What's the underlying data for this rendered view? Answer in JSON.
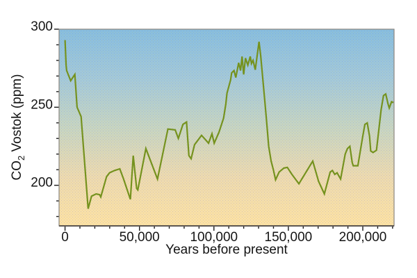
{
  "figure": {
    "background_color": "#ffffff"
  },
  "chart_data": {
    "type": "line",
    "title": "",
    "xlabel": "Years before present",
    "ylabel": "CO2 Vostok (ppm)",
    "ylabel_parts": {
      "prefix": "CO",
      "subscript": "2",
      "suffix": " Vostok (ppm)"
    },
    "x_range": [
      -4000,
      221000
    ],
    "y_range": [
      174,
      300
    ],
    "x_ticks": [
      {
        "value": 0,
        "label": "0"
      },
      {
        "value": 50000,
        "label": "50,000"
      },
      {
        "value": 100000,
        "label": "100,000"
      },
      {
        "value": 150000,
        "label": "150,000"
      },
      {
        "value": 200000,
        "label": "200,000"
      }
    ],
    "y_ticks": [
      {
        "value": 200,
        "label": "200"
      },
      {
        "value": 250,
        "label": "250"
      },
      {
        "value": 300,
        "label": "300"
      }
    ],
    "x_minor_step": 10000,
    "x_minor_max": 220000,
    "y_minor_step": 10,
    "grid": false,
    "legend": "none",
    "line_color": "#75921e",
    "tick_color": "#1c1c1c",
    "border_color": "#8a8580",
    "baseline_color": "#5d5651",
    "text_color": "#141414",
    "background_gradient": [
      "#87bedf",
      "#a3c9da",
      "#c6d5c3",
      "#ecdab1",
      "#fce2a5"
    ],
    "series": [
      {
        "name": "CO2 Vostok",
        "points": [
          [
            0,
            293
          ],
          [
            700,
            277
          ],
          [
            1100,
            273.5
          ],
          [
            3800,
            267
          ],
          [
            6600,
            271
          ],
          [
            8100,
            250
          ],
          [
            10800,
            244
          ],
          [
            15500,
            185
          ],
          [
            17800,
            193
          ],
          [
            20900,
            194.5
          ],
          [
            23200,
            194
          ],
          [
            24000,
            192.5
          ],
          [
            27900,
            205.5
          ],
          [
            29900,
            208
          ],
          [
            33300,
            209.5
          ],
          [
            36800,
            210.5
          ],
          [
            39300,
            204
          ],
          [
            43900,
            191
          ],
          [
            45800,
            219
          ],
          [
            48100,
            198
          ],
          [
            48900,
            197
          ],
          [
            54300,
            223.5
          ],
          [
            62100,
            204
          ],
          [
            69100,
            236
          ],
          [
            74000,
            235.5
          ],
          [
            76100,
            230
          ],
          [
            79200,
            239
          ],
          [
            81600,
            240.5
          ],
          [
            83200,
            219
          ],
          [
            84700,
            217
          ],
          [
            87000,
            226
          ],
          [
            91700,
            232
          ],
          [
            96400,
            227
          ],
          [
            98700,
            233
          ],
          [
            100200,
            227
          ],
          [
            103400,
            234
          ],
          [
            106500,
            243
          ],
          [
            108000,
            252
          ],
          [
            108800,
            259
          ],
          [
            111200,
            267.5
          ],
          [
            111900,
            272
          ],
          [
            113500,
            273.5
          ],
          [
            114700,
            269
          ],
          [
            116600,
            278.5
          ],
          [
            117900,
            273.5
          ],
          [
            118900,
            282.5
          ],
          [
            120000,
            271
          ],
          [
            121200,
            281.5
          ],
          [
            122800,
            277
          ],
          [
            124400,
            282.5
          ],
          [
            125200,
            278
          ],
          [
            126300,
            280
          ],
          [
            127800,
            274
          ],
          [
            130300,
            292
          ],
          [
            131400,
            283
          ],
          [
            133700,
            259
          ],
          [
            135200,
            243
          ],
          [
            136800,
            225
          ],
          [
            138400,
            215.5
          ],
          [
            139900,
            210
          ],
          [
            141400,
            203.5
          ],
          [
            143800,
            208.5
          ],
          [
            146900,
            211
          ],
          [
            149300,
            211.5
          ],
          [
            152400,
            207
          ],
          [
            154700,
            204
          ],
          [
            157100,
            201
          ],
          [
            166400,
            215.5
          ],
          [
            170300,
            202.5
          ],
          [
            174200,
            194.5
          ],
          [
            178100,
            208.5
          ],
          [
            179600,
            209.5
          ],
          [
            181200,
            207
          ],
          [
            182700,
            208
          ],
          [
            185100,
            204
          ],
          [
            188200,
            220
          ],
          [
            189700,
            223.5
          ],
          [
            191300,
            225
          ],
          [
            192900,
            214.5
          ],
          [
            193600,
            212.5
          ],
          [
            196700,
            212.5
          ],
          [
            199900,
            231
          ],
          [
            201400,
            239
          ],
          [
            203000,
            240
          ],
          [
            204500,
            231.5
          ],
          [
            205300,
            222
          ],
          [
            206900,
            221
          ],
          [
            209200,
            222.5
          ],
          [
            212300,
            248.5
          ],
          [
            213900,
            257.5
          ],
          [
            215400,
            258.5
          ],
          [
            217000,
            252
          ],
          [
            217800,
            249.5
          ],
          [
            219300,
            253.5
          ],
          [
            220600,
            253
          ]
        ]
      }
    ]
  }
}
